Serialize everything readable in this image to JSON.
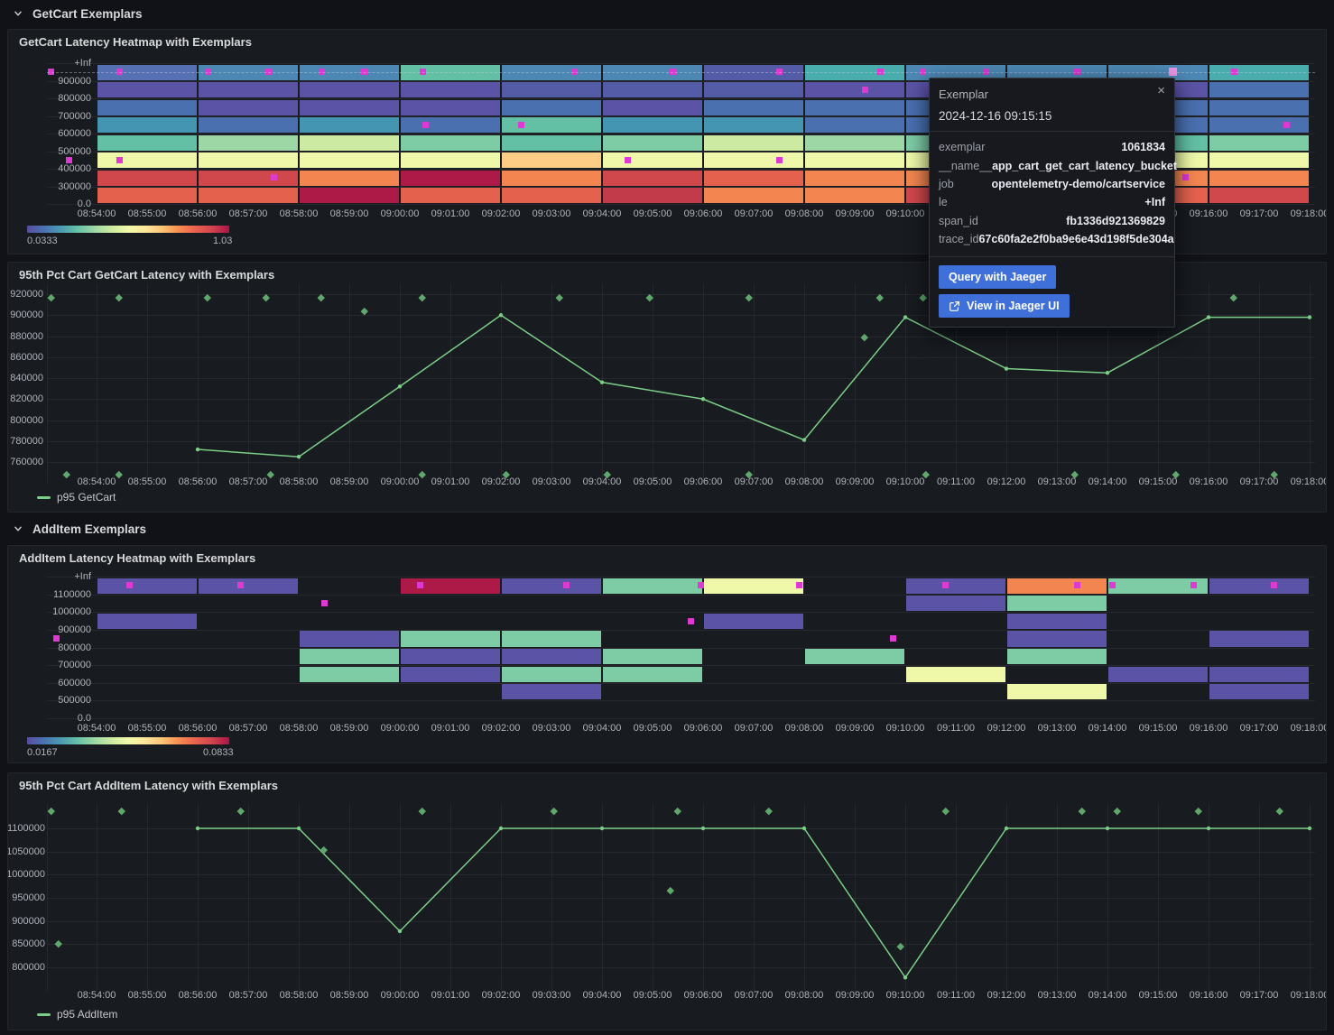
{
  "page": {
    "bg": "#111217",
    "panel_bg": "#181b1f",
    "panel_border": "#24262c"
  },
  "colors": {
    "exemplar": "#de39d3",
    "exemplar_highlight": "#ef93e2",
    "series_green": "#7bce86",
    "diamond_green": "#5fa76c",
    "button_blue": "#3f6fd8",
    "gradient_stops": [
      "#584da1",
      "#4a73b1",
      "#4b9bb2",
      "#66c2a5",
      "#9dd8a4",
      "#cdeba3",
      "#f1f9a9",
      "#fee79b",
      "#fdc577",
      "#f88d51",
      "#ea6150",
      "#d0434d",
      "#ab1446"
    ]
  },
  "palette": {
    "P": "#5b53a5",
    "IB": "#5570b3",
    "BP": "#545ca7",
    "B": "#4a70b0",
    "SB": "#4d88b4",
    "TB": "#4495b1",
    "T": "#4aadad",
    "TG": "#63c0a4",
    "G": "#7ecca5",
    "LG": "#9dd7a6",
    "YG": "#cdeaa3",
    "PY": "#eff8a8",
    "LO": "#fdcd85",
    "O": "#f38650",
    "RO": "#e4614e",
    "R": "#d0484c",
    "DR": "#c23b4b",
    "CM": "#ad1a48"
  },
  "time_ticks": [
    "08:54:00",
    "08:55:00",
    "08:56:00",
    "08:57:00",
    "08:58:00",
    "08:59:00",
    "09:00:00",
    "09:01:00",
    "09:02:00",
    "09:03:00",
    "09:04:00",
    "09:05:00",
    "09:06:00",
    "09:07:00",
    "09:08:00",
    "09:09:00",
    "09:10:00",
    "09:11:00",
    "09:12:00",
    "09:13:00",
    "09:14:00",
    "09:15:00",
    "09:16:00",
    "09:17:00",
    "09:18:00"
  ],
  "rows": [
    {
      "title": "GetCart Exemplars"
    },
    {
      "title": "AddItem Exemplars"
    }
  ],
  "chart_data": [
    {
      "id": "getcart_heatmap",
      "type": "heatmap",
      "title": "GetCart Latency Heatmap with Exemplars",
      "y_tick_labels": [
        "+Inf",
        "900000",
        "800000",
        "700000",
        "600000",
        "500000",
        "400000",
        "300000",
        "0.0"
      ],
      "bucket_minutes": 2,
      "columns": [
        [
          "IB",
          "P",
          "B",
          "TB",
          "TG",
          "PY",
          "R",
          "RO"
        ],
        [
          "SB",
          "P",
          "P",
          "B",
          "LG",
          "PY",
          "R",
          "RO"
        ],
        [
          "SB",
          "P",
          "P",
          "TB",
          "YG",
          "PY",
          "O",
          "CM"
        ],
        [
          "TG",
          "P",
          "P",
          "B",
          "G",
          "PY",
          "CM",
          "RO"
        ],
        [
          "SB",
          "BP",
          "B",
          "TG",
          "TG",
          "LO",
          "O",
          "RO"
        ],
        [
          "SB",
          "BP",
          "P",
          "TB",
          "G",
          "PY",
          "R",
          "DR"
        ],
        [
          "BP",
          "BP",
          "B",
          "TB",
          "YG",
          "PY",
          "RO",
          "O"
        ],
        [
          "T",
          "P",
          "B",
          "B",
          "LG",
          "PY",
          "O",
          "O"
        ],
        [
          "SB",
          "P",
          "B",
          "B",
          "G",
          "PY",
          "O",
          "R"
        ],
        [
          "SB",
          "P",
          "B",
          "B",
          "G",
          "PY",
          "O",
          "R"
        ],
        [
          "SB",
          "P",
          "B",
          "B",
          "TG",
          "PY",
          "O",
          "RO"
        ],
        [
          "T",
          "B",
          "B",
          "B",
          "G",
          "PY",
          "O",
          "R"
        ]
      ],
      "exemplar_markers": [
        [
          -0.9,
          0
        ],
        [
          0.45,
          0
        ],
        [
          -0.55,
          5
        ],
        [
          0.45,
          5
        ],
        [
          2.2,
          0
        ],
        [
          3.4,
          0
        ],
        [
          3.5,
          6
        ],
        [
          4.45,
          0
        ],
        [
          5.3,
          0
        ],
        [
          6.45,
          0
        ],
        [
          6.5,
          3
        ],
        [
          8.4,
          3
        ],
        [
          9.45,
          0
        ],
        [
          10.5,
          5
        ],
        [
          11.4,
          0
        ],
        [
          13.5,
          0
        ],
        [
          13.5,
          5
        ],
        [
          15.2,
          1
        ],
        [
          15.5,
          0
        ],
        [
          16.35,
          0
        ],
        [
          17.6,
          0
        ],
        [
          19.4,
          0
        ],
        [
          21.55,
          6
        ],
        [
          22.5,
          0
        ],
        [
          23.55,
          3
        ]
      ],
      "highlighted_marker": {
        "minute": 21.3,
        "row": 0
      },
      "color_scale": {
        "min_label": "0.0333",
        "max_label": "1.03"
      }
    },
    {
      "id": "getcart_p95",
      "type": "line",
      "title": "95th Pct Cart GetCart Latency with Exemplars",
      "legend": "p95 GetCart",
      "y_ticks": [
        920000,
        900000,
        880000,
        860000,
        840000,
        820000,
        800000,
        780000,
        760000
      ],
      "x_minutes": [
        2,
        4,
        6,
        8,
        10,
        12,
        14,
        16,
        18,
        20,
        22,
        24
      ],
      "values": [
        772000,
        765000,
        832000,
        900000,
        836000,
        820000,
        781000,
        898000,
        849000,
        845000,
        898000,
        898000
      ],
      "exemplars": [
        [
          -0.9,
          917000
        ],
        [
          0.45,
          917000
        ],
        [
          2.2,
          917000
        ],
        [
          3.35,
          917000
        ],
        [
          4.45,
          917000
        ],
        [
          5.3,
          904000
        ],
        [
          6.45,
          917000
        ],
        [
          9.15,
          917000
        ],
        [
          10.95,
          917000
        ],
        [
          12.9,
          917000
        ],
        [
          15.2,
          879000
        ],
        [
          15.5,
          917000
        ],
        [
          16.35,
          917000
        ],
        [
          22.5,
          917000
        ],
        [
          -0.6,
          748000
        ],
        [
          0.45,
          748000
        ],
        [
          3.45,
          748000
        ],
        [
          6.45,
          748000
        ],
        [
          8.1,
          748000
        ],
        [
          10.1,
          748000
        ],
        [
          12.9,
          748000
        ],
        [
          16.4,
          748000
        ],
        [
          19.35,
          748000
        ],
        [
          21.35,
          748000
        ],
        [
          23.3,
          748000
        ]
      ]
    },
    {
      "id": "additem_heatmap",
      "type": "heatmap",
      "title": "AddItem Latency Heatmap with Exemplars",
      "y_tick_labels": [
        "+Inf",
        "1100000",
        "1000000",
        "900000",
        "800000",
        "700000",
        "600000",
        "500000",
        "0.0"
      ],
      "bucket_minutes": 2,
      "columns": [
        [
          "P",
          "-",
          "P",
          "-",
          "-",
          "-",
          "-",
          "-"
        ],
        [
          "P",
          "-",
          "-",
          "-",
          "-",
          "-",
          "-",
          "-"
        ],
        [
          "-",
          "-",
          "-",
          "P",
          "G",
          "G",
          "-",
          "-"
        ],
        [
          "CM",
          "-",
          "-",
          "G",
          "P",
          "P",
          "-",
          "-"
        ],
        [
          "P",
          "-",
          "-",
          "G",
          "P",
          "G",
          "P",
          "-"
        ],
        [
          "G",
          "-",
          "-",
          "-",
          "G",
          "G",
          "-",
          "-"
        ],
        [
          "PY",
          "-",
          "P",
          "-",
          "-",
          "-",
          "-",
          "-"
        ],
        [
          "-",
          "-",
          "-",
          "-",
          "G",
          "-",
          "-",
          "-"
        ],
        [
          "P",
          "P",
          "-",
          "-",
          "-",
          "PY",
          "-",
          "-"
        ],
        [
          "O",
          "G",
          "P",
          "P",
          "G",
          "-",
          "PY",
          "-"
        ],
        [
          "G",
          "-",
          "-",
          "-",
          "-",
          "P",
          "-",
          "-"
        ],
        [
          "P",
          "-",
          "-",
          "P",
          "-",
          "P",
          "P",
          "-"
        ]
      ],
      "exemplar_markers": [
        [
          -0.8,
          3
        ],
        [
          0.65,
          0
        ],
        [
          2.85,
          0
        ],
        [
          4.5,
          1
        ],
        [
          6.4,
          0
        ],
        [
          9.3,
          0
        ],
        [
          11.75,
          2
        ],
        [
          11.95,
          0
        ],
        [
          13.9,
          0
        ],
        [
          15.75,
          3
        ],
        [
          16.8,
          0
        ],
        [
          19.4,
          0
        ],
        [
          20.1,
          0
        ],
        [
          21.7,
          0
        ],
        [
          23.3,
          0
        ]
      ],
      "color_scale": {
        "min_label": "0.0167",
        "max_label": "0.0833"
      }
    },
    {
      "id": "additem_p95",
      "type": "line",
      "title": "95th Pct Cart AddItem Latency with Exemplars",
      "legend": "p95 AddItem",
      "y_ticks": [
        1100000,
        1050000,
        1000000,
        950000,
        900000,
        850000,
        800000
      ],
      "x_minutes": [
        2,
        4,
        6,
        8,
        10,
        12,
        14,
        16,
        18,
        20,
        22,
        24
      ],
      "values": [
        1100000,
        1100000,
        878000,
        1100000,
        1100000,
        1100000,
        1100000,
        778000,
        1100000,
        1100000,
        1100000,
        1100000
      ],
      "exemplars": [
        [
          -0.9,
          1137000
        ],
        [
          0.5,
          1137000
        ],
        [
          2.85,
          1137000
        ],
        [
          6.45,
          1137000
        ],
        [
          9.05,
          1137000
        ],
        [
          11.5,
          1137000
        ],
        [
          13.3,
          1137000
        ],
        [
          16.8,
          1137000
        ],
        [
          19.5,
          1137000
        ],
        [
          20.2,
          1137000
        ],
        [
          21.8,
          1137000
        ],
        [
          23.4,
          1137000
        ],
        [
          -0.75,
          852000
        ],
        [
          4.5,
          1053000
        ],
        [
          11.35,
          966000
        ],
        [
          15.9,
          845000
        ]
      ]
    }
  ],
  "tooltip": {
    "title": "Exemplar",
    "close_icon": "×",
    "timestamp": "2024-12-16 09:15:15",
    "fields": [
      {
        "label": "exemplar",
        "value": "1061834"
      },
      {
        "label": "__name__",
        "value": "app_cart_get_cart_latency_bucket"
      },
      {
        "label": "job",
        "value": "opentelemetry-demo/cartservice"
      },
      {
        "label": "le",
        "value": "+Inf"
      },
      {
        "label": "span_id",
        "value": "fb1336d921369829"
      },
      {
        "label": "trace_id",
        "value": "67c60fa2e2f0ba9e6e43d198f5de304a"
      }
    ],
    "buttons": [
      {
        "label": "Query with Jaeger"
      },
      {
        "label": "View in Jaeger UI",
        "icon": "external-link-icon"
      }
    ]
  }
}
